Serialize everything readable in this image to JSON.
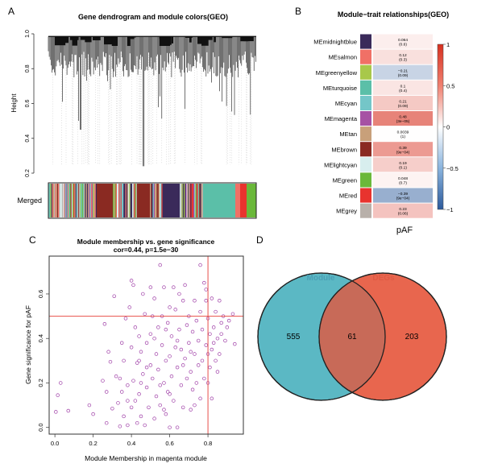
{
  "panels": {
    "a": "A",
    "b": "B",
    "c": "C",
    "d": "D"
  },
  "chart_data": [
    {
      "type": "dendrogram",
      "title": "Gene dendrogram and module colors(GEO)",
      "ylabel": "Height",
      "ylim": [
        0.2,
        1.0
      ],
      "yticks": [
        "0.2",
        "0.4",
        "0.6",
        "0.8",
        "1.0"
      ],
      "color_row_label": "Merged",
      "module_colors": [
        "#3a2a5a",
        "#f07066",
        "#a8c84a",
        "#5bbfa8",
        "#74c6c8",
        "#a652a4",
        "#c8a07a",
        "#8a2a22",
        "#d8eeee",
        "#6ab83a",
        "#e8332e",
        "#b8b0aa"
      ]
    },
    {
      "type": "heatmap",
      "title": "Module−trait relationships(GEO)",
      "xlabel": "pAF",
      "colorbar_ticks": [
        "1",
        "0.5",
        "0",
        "−0.5",
        "−1"
      ],
      "colorbar_range": [
        -1,
        1
      ],
      "rows": [
        {
          "module": "MEmidnightblue",
          "color": "#3a2a5a",
          "cor": 0.064,
          "cor_label": "0.064",
          "p_label": "(0.6)"
        },
        {
          "module": "MEsalmon",
          "color": "#f07066",
          "cor": 0.12,
          "cor_label": "0.12",
          "p_label": "(0.3)"
        },
        {
          "module": "MEgreenyellow",
          "color": "#a8c84a",
          "cor": -0.21,
          "cor_label": "−0.21",
          "p_label": "(0.09)"
        },
        {
          "module": "MEturquoise",
          "color": "#5bbfa8",
          "cor": 0.1,
          "cor_label": "0.1",
          "p_label": "(0.4)"
        },
        {
          "module": "MEcyan",
          "color": "#74c6c8",
          "cor": 0.21,
          "cor_label": "0.21",
          "p_label": "(0.09)"
        },
        {
          "module": "MEmagenta",
          "color": "#a652a4",
          "cor": 0.48,
          "cor_label": "0.48",
          "p_label": "(3e−05)"
        },
        {
          "module": "MEtan",
          "color": "#c8a07a",
          "cor": 0.0039,
          "cor_label": "0.0039",
          "p_label": "(1)"
        },
        {
          "module": "MEbrown",
          "color": "#8a2a22",
          "cor": 0.39,
          "cor_label": "0.39",
          "p_label": "(9e−04)"
        },
        {
          "module": "MElightcyan",
          "color": "#d8eeee",
          "cor": 0.19,
          "cor_label": "0.19",
          "p_label": "(0.1)"
        },
        {
          "module": "MEgreen",
          "color": "#6ab83a",
          "cor": 0.048,
          "cor_label": "0.048",
          "p_label": "(0.7)"
        },
        {
          "module": "MEred",
          "color": "#e8332e",
          "cor": -0.39,
          "cor_label": "−0.39",
          "p_label": "(9e−04)"
        },
        {
          "module": "MEgrey",
          "color": "#b8b0aa",
          "cor": 0.23,
          "cor_label": "0.23",
          "p_label": "(0.06)"
        }
      ]
    },
    {
      "type": "scatter",
      "title": "Module membership vs. gene significance",
      "subtitle": "cor=0.44, p=1.5e−30",
      "xlabel": "Module Membership in magenta module",
      "ylabel": "Gene significance for  pAF",
      "xlim": [
        -0.03,
        0.985
      ],
      "ylim": [
        -0.03,
        0.77
      ],
      "xticks": [
        "0.0",
        "0.2",
        "0.4",
        "0.6",
        "0.8"
      ],
      "yticks": [
        "0.0",
        "0.2",
        "0.4",
        "0.6"
      ],
      "point_color": "#a040a8",
      "threshold_color": "#e8504a",
      "thresholds": {
        "x": 0.8,
        "y": 0.5
      },
      "points": [
        [
          0.005,
          0.07
        ],
        [
          0.015,
          0.145
        ],
        [
          0.03,
          0.2
        ],
        [
          0.07,
          0.075
        ],
        [
          0.18,
          0.1
        ],
        [
          0.2,
          0.06
        ],
        [
          0.25,
          0.21
        ],
        [
          0.26,
          0.465
        ],
        [
          0.27,
          0.16
        ],
        [
          0.27,
          0.02
        ],
        [
          0.28,
          0.34
        ],
        [
          0.29,
          0.295
        ],
        [
          0.3,
          0.085
        ],
        [
          0.31,
          0.59
        ],
        [
          0.32,
          0.23
        ],
        [
          0.33,
          0.11
        ],
        [
          0.34,
          0.005
        ],
        [
          0.35,
          0.16
        ],
        [
          0.35,
          0.38
        ],
        [
          0.36,
          0.3
        ],
        [
          0.36,
          0.05
        ],
        [
          0.37,
          0.49
        ],
        [
          0.38,
          0.19
        ],
        [
          0.38,
          0.01
        ],
        [
          0.39,
          0.54
        ],
        [
          0.4,
          0.66
        ],
        [
          0.4,
          0.36
        ],
        [
          0.4,
          0.09
        ],
        [
          0.41,
          0.64
        ],
        [
          0.41,
          0.21
        ],
        [
          0.42,
          0.45
        ],
        [
          0.42,
          0.12
        ],
        [
          0.43,
          0.02
        ],
        [
          0.43,
          0.29
        ],
        [
          0.44,
          0.41
        ],
        [
          0.44,
          0.15
        ],
        [
          0.45,
          0.34
        ],
        [
          0.45,
          0.05
        ],
        [
          0.46,
          0.6
        ],
        [
          0.46,
          0.24
        ],
        [
          0.47,
          0.51
        ],
        [
          0.47,
          0.01
        ],
        [
          0.48,
          0.38
        ],
        [
          0.48,
          0.18
        ],
        [
          0.49,
          0.09
        ],
        [
          0.5,
          0.63
        ],
        [
          0.5,
          0.28
        ],
        [
          0.5,
          0.42
        ],
        [
          0.51,
          0.22
        ],
        [
          0.51,
          0.5
        ],
        [
          0.52,
          0.58
        ],
        [
          0.52,
          0.04
        ],
        [
          0.53,
          0.33
        ],
        [
          0.53,
          0.14
        ],
        [
          0.54,
          0.45
        ],
        [
          0.54,
          0.26
        ],
        [
          0.55,
          0.73
        ],
        [
          0.55,
          0.1
        ],
        [
          0.56,
          0.5
        ],
        [
          0.56,
          0.37
        ],
        [
          0.57,
          0.2
        ],
        [
          0.57,
          0.63
        ],
        [
          0.58,
          0.3
        ],
        [
          0.58,
          0.06
        ],
        [
          0.59,
          0.47
        ],
        [
          0.59,
          0.16
        ],
        [
          0.6,
          0.54
        ],
        [
          0.6,
          0.32
        ],
        [
          0.6,
          0.0
        ],
        [
          0.61,
          0.23
        ],
        [
          0.61,
          0.41
        ],
        [
          0.62,
          0.63
        ],
        [
          0.62,
          0.12
        ],
        [
          0.63,
          0.36
        ],
        [
          0.63,
          0.53
        ],
        [
          0.64,
          0.27
        ],
        [
          0.64,
          0.0
        ],
        [
          0.65,
          0.6
        ],
        [
          0.65,
          0.44
        ],
        [
          0.66,
          0.19
        ],
        [
          0.66,
          0.35
        ],
        [
          0.67,
          0.57
        ],
        [
          0.67,
          0.09
        ],
        [
          0.68,
          0.31
        ],
        [
          0.68,
          0.64
        ],
        [
          0.69,
          0.46
        ],
        [
          0.69,
          0.22
        ],
        [
          0.7,
          0.38
        ],
        [
          0.7,
          0.5
        ],
        [
          0.71,
          0.25
        ],
        [
          0.71,
          0.08
        ],
        [
          0.72,
          0.43
        ],
        [
          0.72,
          0.17
        ],
        [
          0.73,
          0.57
        ],
        [
          0.73,
          0.33
        ],
        [
          0.74,
          0.48
        ],
        [
          0.74,
          0.2
        ],
        [
          0.75,
          0.28
        ],
        [
          0.75,
          0.39
        ],
        [
          0.76,
          0.73
        ],
        [
          0.76,
          0.52
        ],
        [
          0.76,
          0.13
        ],
        [
          0.77,
          0.44
        ],
        [
          0.77,
          0.3
        ],
        [
          0.78,
          0.65
        ],
        [
          0.78,
          0.22
        ],
        [
          0.79,
          0.62
        ],
        [
          0.79,
          0.37
        ],
        [
          0.79,
          0.57
        ],
        [
          0.8,
          0.33
        ],
        [
          0.8,
          0.49
        ],
        [
          0.8,
          0.2
        ],
        [
          0.81,
          0.42
        ],
        [
          0.81,
          0.27
        ],
        [
          0.82,
          0.58
        ],
        [
          0.82,
          0.13
        ],
        [
          0.83,
          0.38
        ],
        [
          0.83,
          0.45
        ],
        [
          0.84,
          0.3
        ],
        [
          0.84,
          0.52
        ],
        [
          0.85,
          0.4
        ],
        [
          0.85,
          0.25
        ],
        [
          0.86,
          0.57
        ],
        [
          0.86,
          0.33
        ],
        [
          0.87,
          0.47
        ],
        [
          0.87,
          0.42
        ],
        [
          0.88,
          0.5
        ],
        [
          0.89,
          0.39
        ],
        [
          0.9,
          0.45
        ],
        [
          0.91,
          0.48
        ],
        [
          0.93,
          0.51
        ],
        [
          0.94,
          0.375
        ],
        [
          0.44,
          0.3
        ],
        [
          0.52,
          0.4
        ],
        [
          0.6,
          0.15
        ],
        [
          0.67,
          0.28
        ],
        [
          0.73,
          0.1
        ],
        [
          0.58,
          0.44
        ],
        [
          0.48,
          0.27
        ],
        [
          0.38,
          0.12
        ],
        [
          0.34,
          0.22
        ],
        [
          0.55,
          0.19
        ],
        [
          0.64,
          0.39
        ],
        [
          0.71,
          0.34
        ],
        [
          0.82,
          0.35
        ],
        [
          0.45,
          0.2
        ],
        [
          0.57,
          0.08
        ]
      ]
    },
    {
      "type": "venn",
      "sets": [
        {
          "name": "Module",
          "color": "#5bb8c4",
          "label_color": "#4a9fb5",
          "only": 555
        },
        {
          "name": "DEGs",
          "color": "#e8664e",
          "label_color": "#e05a44",
          "only": 203
        }
      ],
      "intersection": 61,
      "intersection_color": "#c86a58"
    }
  ]
}
